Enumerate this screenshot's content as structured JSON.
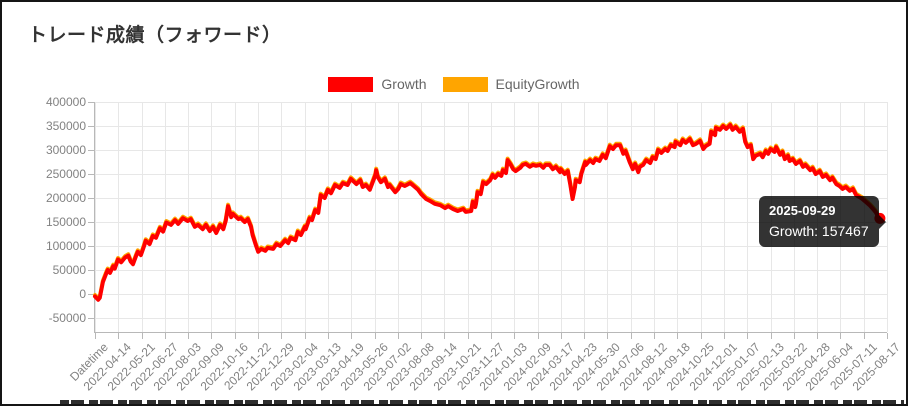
{
  "page": {
    "title": "トレード成績（フォワード）"
  },
  "legend": {
    "items": [
      {
        "label": "Growth",
        "color": "#ff0000"
      },
      {
        "label": "EquityGrowth",
        "color": "#ffa500"
      }
    ]
  },
  "tooltip": {
    "title": "2025-09-29",
    "body": "Growth: 157467"
  },
  "colors": {
    "growth": "#ff0000",
    "equity_growth": "#ffa500",
    "grid": "#e7e7e7",
    "axis": "#b8b8b8",
    "tick_text": "#828282",
    "tooltip_bg": "rgba(0,0,0,0.8)"
  },
  "chart_data": {
    "type": "line",
    "title": "トレード成績（フォワード）",
    "xlabel": "Datetime",
    "ylabel": "",
    "grid": true,
    "legend_position": "top",
    "ylim": [
      -50000,
      400000
    ],
    "y_ticks": [
      400000,
      350000,
      300000,
      250000,
      200000,
      150000,
      100000,
      50000,
      0,
      -50000
    ],
    "x_tick_labels": [
      "Datetime",
      "2022-04-14",
      "2022-05-21",
      "2022-06-27",
      "2022-08-03",
      "2022-09-09",
      "2022-10-16",
      "2022-11-22",
      "2022-12-29",
      "2023-02-04",
      "2023-03-13",
      "2023-04-19",
      "2023-05-26",
      "2023-07-02",
      "2023-08-08",
      "2023-09-14",
      "2023-10-21",
      "2023-11-27",
      "2024-01-03",
      "2024-02-09",
      "2024-03-17",
      "2024-04-23",
      "2024-05-30",
      "2024-07-06",
      "2024-08-12",
      "2024-09-18",
      "2024-10-25",
      "2024-12-01",
      "2025-01-07",
      "2025-02-13",
      "2025-03-22",
      "2025-04-28",
      "2025-06-04",
      "2025-07-11",
      "2025-08-17"
    ],
    "series": [
      {
        "name": "Growth",
        "color": "#ff0000",
        "points_note": "pairs of [x_permille_of_time_axis, value]; values estimated from pixels",
        "points": [
          [
            0,
            -5000
          ],
          [
            4,
            -12000
          ],
          [
            6,
            -8000
          ],
          [
            10,
            25000
          ],
          [
            14,
            42000
          ],
          [
            16,
            50000
          ],
          [
            19,
            44000
          ],
          [
            23,
            58000
          ],
          [
            25,
            53000
          ],
          [
            29,
            72000
          ],
          [
            33,
            66000
          ],
          [
            38,
            76000
          ],
          [
            42,
            80000
          ],
          [
            45,
            68000
          ],
          [
            48,
            62000
          ],
          [
            52,
            80000
          ],
          [
            54,
            88000
          ],
          [
            58,
            81000
          ],
          [
            62,
            100000
          ],
          [
            64,
            111000
          ],
          [
            69,
            104000
          ],
          [
            73,
            121000
          ],
          [
            77,
            117000
          ],
          [
            82,
            137000
          ],
          [
            86,
            130000
          ],
          [
            90,
            149000
          ],
          [
            96,
            144000
          ],
          [
            101,
            154000
          ],
          [
            105,
            146000
          ],
          [
            111,
            158000
          ],
          [
            117,
            152000
          ],
          [
            121,
            156000
          ],
          [
            126,
            140000
          ],
          [
            130,
            144000
          ],
          [
            136,
            135000
          ],
          [
            140,
            144000
          ],
          [
            145,
            131000
          ],
          [
            149,
            140000
          ],
          [
            153,
            127000
          ],
          [
            158,
            144000
          ],
          [
            162,
            135000
          ],
          [
            165,
            152000
          ],
          [
            168,
            183000
          ],
          [
            172,
            160000
          ],
          [
            174,
            167000
          ],
          [
            181,
            156000
          ],
          [
            184,
            158000
          ],
          [
            189,
            150000
          ],
          [
            193,
            156000
          ],
          [
            197,
            140000
          ],
          [
            199,
            123000
          ],
          [
            203,
            102000
          ],
          [
            206,
            88000
          ],
          [
            210,
            94000
          ],
          [
            215,
            90000
          ],
          [
            218,
            96000
          ],
          [
            225,
            94000
          ],
          [
            229,
            104000
          ],
          [
            234,
            100000
          ],
          [
            240,
            112000
          ],
          [
            244,
            106000
          ],
          [
            247,
            117000
          ],
          [
            253,
            112000
          ],
          [
            256,
            129000
          ],
          [
            260,
            123000
          ],
          [
            265,
            140000
          ],
          [
            266,
            135000
          ],
          [
            271,
            158000
          ],
          [
            274,
            154000
          ],
          [
            278,
            175000
          ],
          [
            282,
            169000
          ],
          [
            285,
            206000
          ],
          [
            290,
            200000
          ],
          [
            294,
            217000
          ],
          [
            298,
            210000
          ],
          [
            303,
            227000
          ],
          [
            309,
            221000
          ],
          [
            313,
            231000
          ],
          [
            319,
            227000
          ],
          [
            323,
            240000
          ],
          [
            330,
            229000
          ],
          [
            335,
            237000
          ],
          [
            338,
            223000
          ],
          [
            342,
            227000
          ],
          [
            347,
            217000
          ],
          [
            354,
            248000
          ],
          [
            355,
            258000
          ],
          [
            357,
            244000
          ],
          [
            361,
            233000
          ],
          [
            366,
            240000
          ],
          [
            370,
            223000
          ],
          [
            372,
            227000
          ],
          [
            379,
            212000
          ],
          [
            383,
            219000
          ],
          [
            386,
            229000
          ],
          [
            391,
            225000
          ],
          [
            398,
            231000
          ],
          [
            401,
            227000
          ],
          [
            408,
            217000
          ],
          [
            412,
            208000
          ],
          [
            418,
            198000
          ],
          [
            423,
            194000
          ],
          [
            429,
            188000
          ],
          [
            436,
            185000
          ],
          [
            442,
            179000
          ],
          [
            446,
            183000
          ],
          [
            452,
            177000
          ],
          [
            458,
            173000
          ],
          [
            465,
            177000
          ],
          [
            468,
            171000
          ],
          [
            475,
            173000
          ],
          [
            477,
            192000
          ],
          [
            480,
            181000
          ],
          [
            481,
            188000
          ],
          [
            483,
            212000
          ],
          [
            487,
            208000
          ],
          [
            490,
            233000
          ],
          [
            494,
            229000
          ],
          [
            499,
            237000
          ],
          [
            502,
            248000
          ],
          [
            505,
            242000
          ],
          [
            509,
            250000
          ],
          [
            513,
            246000
          ],
          [
            515,
            258000
          ],
          [
            519,
            252000
          ],
          [
            521,
            279000
          ],
          [
            525,
            269000
          ],
          [
            528,
            260000
          ],
          [
            531,
            256000
          ],
          [
            537,
            263000
          ],
          [
            540,
            269000
          ],
          [
            544,
            271000
          ],
          [
            549,
            265000
          ],
          [
            553,
            269000
          ],
          [
            557,
            267000
          ],
          [
            562,
            269000
          ],
          [
            566,
            263000
          ],
          [
            569,
            269000
          ],
          [
            574,
            269000
          ],
          [
            578,
            260000
          ],
          [
            582,
            265000
          ],
          [
            587,
            254000
          ],
          [
            588,
            260000
          ],
          [
            593,
            250000
          ],
          [
            597,
            256000
          ],
          [
            600,
            229000
          ],
          [
            603,
            198000
          ],
          [
            606,
            223000
          ],
          [
            607,
            237000
          ],
          [
            612,
            233000
          ],
          [
            614,
            250000
          ],
          [
            619,
            275000
          ],
          [
            620,
            269000
          ],
          [
            625,
            279000
          ],
          [
            629,
            273000
          ],
          [
            632,
            281000
          ],
          [
            637,
            277000
          ],
          [
            641,
            290000
          ],
          [
            645,
            283000
          ],
          [
            650,
            308000
          ],
          [
            654,
            302000
          ],
          [
            658,
            310000
          ],
          [
            663,
            310000
          ],
          [
            667,
            292000
          ],
          [
            670,
            298000
          ],
          [
            675,
            275000
          ],
          [
            679,
            260000
          ],
          [
            682,
            271000
          ],
          [
            686,
            254000
          ],
          [
            688,
            265000
          ],
          [
            692,
            269000
          ],
          [
            696,
            279000
          ],
          [
            701,
            273000
          ],
          [
            704,
            285000
          ],
          [
            708,
            281000
          ],
          [
            711,
            300000
          ],
          [
            715,
            294000
          ],
          [
            720,
            302000
          ],
          [
            723,
            298000
          ],
          [
            727,
            310000
          ],
          [
            732,
            306000
          ],
          [
            733,
            317000
          ],
          [
            739,
            310000
          ],
          [
            742,
            321000
          ],
          [
            746,
            315000
          ],
          [
            751,
            323000
          ],
          [
            755,
            310000
          ],
          [
            759,
            313000
          ],
          [
            764,
            319000
          ],
          [
            768,
            302000
          ],
          [
            771,
            308000
          ],
          [
            776,
            313000
          ],
          [
            778,
            338000
          ],
          [
            783,
            331000
          ],
          [
            784,
            346000
          ],
          [
            789,
            342000
          ],
          [
            793,
            350000
          ],
          [
            797,
            344000
          ],
          [
            802,
            352000
          ],
          [
            805,
            342000
          ],
          [
            809,
            348000
          ],
          [
            814,
            338000
          ],
          [
            818,
            344000
          ],
          [
            821,
            317000
          ],
          [
            824,
            306000
          ],
          [
            828,
            310000
          ],
          [
            831,
            281000
          ],
          [
            834,
            288000
          ],
          [
            840,
            292000
          ],
          [
            843,
            285000
          ],
          [
            847,
            298000
          ],
          [
            850,
            292000
          ],
          [
            853,
            302000
          ],
          [
            858,
            296000
          ],
          [
            860,
            306000
          ],
          [
            865,
            290000
          ],
          [
            868,
            296000
          ],
          [
            871,
            281000
          ],
          [
            875,
            288000
          ],
          [
            877,
            277000
          ],
          [
            881,
            281000
          ],
          [
            885,
            271000
          ],
          [
            890,
            277000
          ],
          [
            894,
            265000
          ],
          [
            897,
            269000
          ],
          [
            903,
            258000
          ],
          [
            906,
            262000
          ],
          [
            910,
            250000
          ],
          [
            915,
            256000
          ],
          [
            919,
            244000
          ],
          [
            923,
            248000
          ],
          [
            928,
            237000
          ],
          [
            931,
            242000
          ],
          [
            936,
            229000
          ],
          [
            940,
            225000
          ],
          [
            944,
            219000
          ],
          [
            948,
            223000
          ],
          [
            953,
            215000
          ],
          [
            957,
            219000
          ],
          [
            961,
            206000
          ],
          [
            965,
            202000
          ],
          [
            969,
            198000
          ],
          [
            973,
            192000
          ],
          [
            978,
            185000
          ],
          [
            982,
            178000
          ],
          [
            986,
            170000
          ],
          [
            988,
            163000
          ],
          [
            991,
            157467
          ]
        ]
      },
      {
        "name": "EquityGrowth",
        "color": "#ffa500",
        "derived_offset_from_growth": 3000,
        "points_note": "EquityGrowth tracks Growth, peeking slightly above it at peaks (~+3000)"
      }
    ],
    "end_point": {
      "x_permille": 991,
      "value": 157467,
      "date": "2025-09-29"
    }
  }
}
